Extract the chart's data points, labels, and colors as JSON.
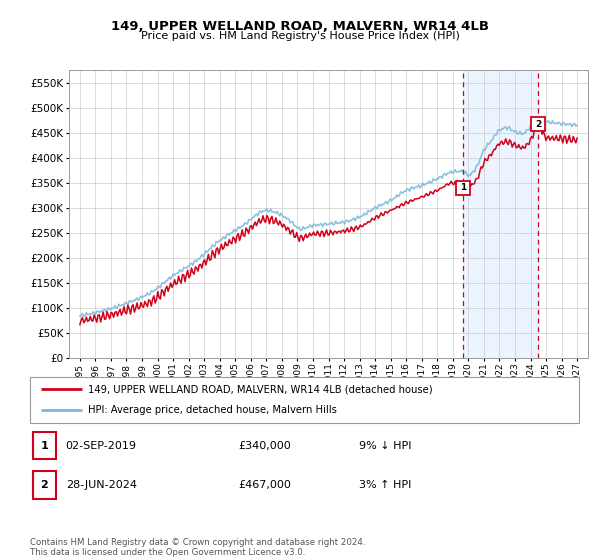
{
  "title": "149, UPPER WELLAND ROAD, MALVERN, WR14 4LB",
  "subtitle": "Price paid vs. HM Land Registry's House Price Index (HPI)",
  "yticks": [
    0,
    50000,
    100000,
    150000,
    200000,
    250000,
    300000,
    350000,
    400000,
    450000,
    500000,
    550000
  ],
  "ylim": [
    0,
    575000
  ],
  "xlim_left": 1994.3,
  "xlim_right": 2027.7,
  "xtick_years": [
    1995,
    1996,
    1997,
    1998,
    1999,
    2000,
    2001,
    2002,
    2003,
    2004,
    2005,
    2006,
    2007,
    2008,
    2009,
    2010,
    2011,
    2012,
    2013,
    2014,
    2015,
    2016,
    2017,
    2018,
    2019,
    2020,
    2021,
    2022,
    2023,
    2024,
    2025,
    2026,
    2027
  ],
  "sale1_x": 2019.67,
  "sale1_y": 340000,
  "sale1_label": "1",
  "sale2_x": 2024.49,
  "sale2_y": 467000,
  "sale2_label": "2",
  "hpi_color": "#7ab8d9",
  "price_color": "#d0021b",
  "vline_color": "#d0021b",
  "shade_color": "#ddeeff",
  "shade_alpha": 0.55,
  "legend_line1": "149, UPPER WELLAND ROAD, MALVERN, WR14 4LB (detached house)",
  "legend_line2": "HPI: Average price, detached house, Malvern Hills",
  "table_row1_num": "1",
  "table_row1_date": "02-SEP-2019",
  "table_row1_price": "£340,000",
  "table_row1_hpi": "9% ↓ HPI",
  "table_row2_num": "2",
  "table_row2_date": "28-JUN-2024",
  "table_row2_price": "£467,000",
  "table_row2_hpi": "3% ↑ HPI",
  "footnote": "Contains HM Land Registry data © Crown copyright and database right 2024.\nThis data is licensed under the Open Government Licence v3.0.",
  "bg_color": "#ffffff",
  "grid_color": "#cccccc",
  "title_fontsize": 9.5,
  "subtitle_fontsize": 8,
  "tick_fontsize": 6.5,
  "ytick_fontsize": 7.5
}
